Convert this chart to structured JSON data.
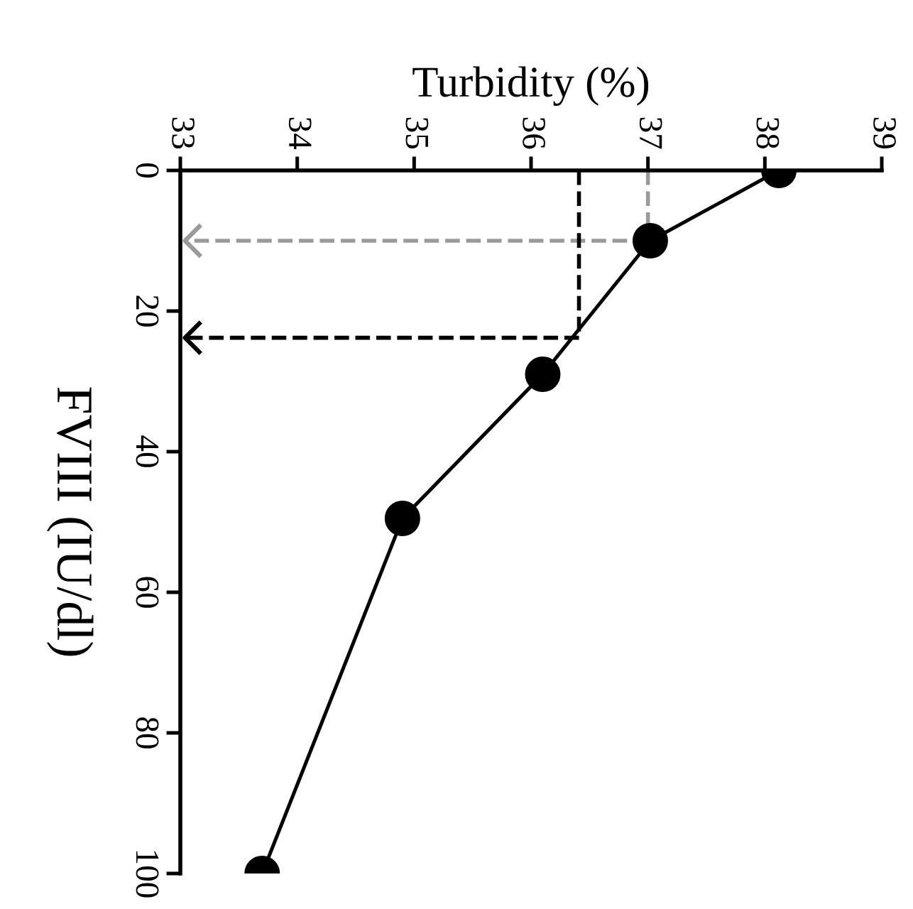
{
  "chart_data": {
    "type": "line",
    "xlabel": "Turbidity (%)",
    "ylabel": "FVIII (IU/dl)",
    "x": [
      38.12,
      37.02,
      36.1,
      34.9,
      33.7
    ],
    "series": [
      {
        "color": "#000000",
        "values": [
          0,
          10,
          29,
          49.5,
          100
        ]
      }
    ],
    "xlim": [
      33,
      39
    ],
    "xticks": [
      33,
      34,
      35,
      36,
      37,
      38,
      39
    ],
    "ylim": [
      100,
      0
    ],
    "yticks": [
      0,
      20,
      40,
      60,
      80,
      100
    ],
    "marker": "circle",
    "line_style": "solid",
    "grid": false,
    "legend": false,
    "ref_lines": [
      {
        "axis": "x",
        "value": 37,
        "color": "#9a9a9a",
        "line_style": "dashed"
      },
      {
        "axis": "y",
        "value": 10,
        "color": "#9a9a9a",
        "line_style": "dashed"
      },
      {
        "axis": "x",
        "value": 36.41,
        "color": "#000000",
        "line_style": "dashed"
      },
      {
        "axis": "y",
        "value": 23.8,
        "color": "#000000",
        "line_style": "dashed"
      }
    ]
  }
}
